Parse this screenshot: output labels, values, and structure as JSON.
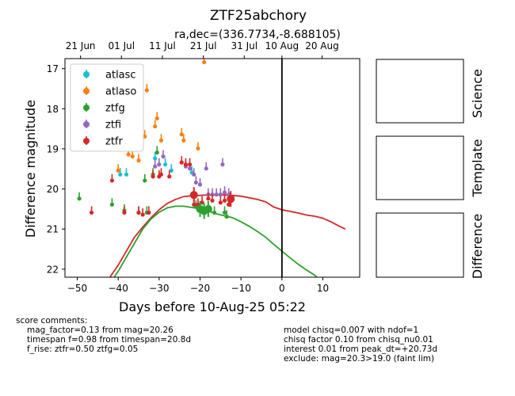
{
  "chart_data": {
    "type": "scatter",
    "title": "ZTF25abchory",
    "subtitle": "ra,dec=(336.7734,-8.688105)",
    "xlabel": "Days before 10-Aug-25 05:22",
    "ylabel": "Difference magnitude",
    "xlim": [
      -53,
      19
    ],
    "ylim": [
      22.2,
      16.75
    ],
    "y_inverted": true,
    "grid": false,
    "legend_position": "upper-left",
    "x_ticks": [
      -50,
      -40,
      -30,
      -20,
      -10,
      0,
      10
    ],
    "x_tick_labels": [
      "−50",
      "−40",
      "−30",
      "−20",
      "−10",
      "0",
      "10"
    ],
    "y_ticks": [
      17,
      18,
      19,
      20,
      21,
      22
    ],
    "top_axis_ticks": [
      {
        "x": -49.2,
        "label": "21 Jun"
      },
      {
        "x": -39.2,
        "label": "01 Jul"
      },
      {
        "x": -29.2,
        "label": "11 Jul"
      },
      {
        "x": -19.2,
        "label": "21 Jul"
      },
      {
        "x": -9.2,
        "label": "31 Jul"
      },
      {
        "x": 0.0,
        "label": "10 Aug"
      },
      {
        "x": 9.8,
        "label": "20 Aug"
      }
    ],
    "vertical_line_x": 0,
    "series": [
      {
        "name": "atlasc",
        "color": "#17becf",
        "marker": "errorbar",
        "points": [
          [
            -39.5,
            19.6
          ],
          [
            -38.0,
            19.6
          ],
          [
            -31.0,
            19.2
          ],
          [
            -28.5,
            19.35
          ],
          [
            -27.0,
            19.5
          ],
          [
            -22.0,
            19.55
          ]
        ]
      },
      {
        "name": "atlaso",
        "color": "#ff7f0e",
        "marker": "errorbar",
        "points": [
          [
            -40.0,
            19.5
          ],
          [
            -37.5,
            19.1
          ],
          [
            -36.5,
            19.15
          ],
          [
            -33.5,
            18.65
          ],
          [
            -33.0,
            17.5
          ],
          [
            -31.0,
            18.4
          ],
          [
            -30.5,
            18.2
          ],
          [
            -29.5,
            18.75
          ],
          [
            -24.5,
            18.6
          ],
          [
            -24.0,
            18.75
          ],
          [
            -20.5,
            18.95
          ],
          [
            -19.0,
            16.8
          ],
          [
            -35.0,
            19.25
          ]
        ]
      },
      {
        "name": "ztfg",
        "color": "#2ca02c",
        "marker": "errorbar",
        "points": [
          [
            -49.5,
            20.2
          ],
          [
            -41.5,
            20.35
          ],
          [
            -38.5,
            20.5
          ],
          [
            -35.0,
            20.55
          ],
          [
            -33.5,
            19.75
          ],
          [
            -33.0,
            20.55
          ],
          [
            -31.5,
            19.6
          ],
          [
            -30.5,
            19.05
          ],
          [
            -21.0,
            20.4
          ],
          [
            -20.0,
            20.5
          ],
          [
            -19.0,
            20.5
          ],
          [
            -18.0,
            20.5
          ],
          [
            -16.5,
            20.55
          ],
          [
            -14.0,
            20.55
          ],
          [
            -13.5,
            20.65
          ],
          [
            -13.0,
            20.35
          ]
        ]
      },
      {
        "name": "ztfi",
        "color": "#9467bd",
        "marker": "errorbar",
        "points": [
          [
            -31.0,
            19.4
          ],
          [
            -30.0,
            19.35
          ],
          [
            -29.0,
            19.15
          ],
          [
            -23.5,
            19.4
          ],
          [
            -22.5,
            19.45
          ],
          [
            -21.5,
            19.6
          ],
          [
            -21.0,
            19.8
          ],
          [
            -20.0,
            19.85
          ],
          [
            -18.5,
            19.45
          ],
          [
            -18.0,
            20.1
          ],
          [
            -17.0,
            20.1
          ],
          [
            -16.0,
            20.1
          ],
          [
            -15.0,
            20.1
          ],
          [
            -14.5,
            19.35
          ],
          [
            -14.0,
            20.05
          ],
          [
            -13.0,
            20.1
          ]
        ]
      },
      {
        "name": "ztfr",
        "color": "#d62728",
        "marker": "errorbar",
        "points": [
          [
            -46.5,
            20.55
          ],
          [
            -41.5,
            19.75
          ],
          [
            -38.5,
            20.55
          ],
          [
            -35.0,
            20.55
          ],
          [
            -34.0,
            20.6
          ],
          [
            -32.5,
            20.55
          ],
          [
            -31.5,
            19.65
          ],
          [
            -30.0,
            19.65
          ],
          [
            -29.5,
            19.6
          ],
          [
            -27.5,
            19.65
          ],
          [
            -24.5,
            19.3
          ],
          [
            -23.5,
            19.35
          ],
          [
            -22.5,
            19.35
          ],
          [
            -21.5,
            20.35
          ],
          [
            -20.5,
            20.35
          ],
          [
            -19.5,
            20.3
          ],
          [
            -18.0,
            20.2
          ],
          [
            -17.0,
            20.25
          ],
          [
            -15.0,
            20.3
          ],
          [
            -14.0,
            20.25
          ],
          [
            -13.0,
            20.35
          ]
        ]
      },
      {
        "name": "",
        "color": "#d62728",
        "marker": "big",
        "points": [
          [
            -21.5,
            20.15
          ],
          [
            -12.5,
            20.25
          ]
        ]
      },
      {
        "name": "",
        "color": "#2ca02c",
        "marker": "big",
        "points": [
          [
            -20.0,
            20.5
          ],
          [
            -19.0,
            20.55
          ],
          [
            -18.0,
            20.5
          ]
        ]
      }
    ],
    "model_curves": [
      {
        "color": "#d62728",
        "points": [
          [
            -42,
            22.2
          ],
          [
            -40,
            21.9
          ],
          [
            -38,
            21.55
          ],
          [
            -36,
            21.2
          ],
          [
            -34,
            20.95
          ],
          [
            -32,
            20.72
          ],
          [
            -30,
            20.52
          ],
          [
            -28,
            20.36
          ],
          [
            -26,
            20.26
          ],
          [
            -24,
            20.19
          ],
          [
            -22,
            20.17
          ],
          [
            -20,
            20.16
          ],
          [
            -18,
            20.15
          ],
          [
            -14,
            20.15
          ],
          [
            -10,
            20.18
          ],
          [
            -6,
            20.26
          ],
          [
            -4,
            20.32
          ],
          [
            -2,
            20.45
          ],
          [
            0,
            20.52
          ],
          [
            2,
            20.56
          ],
          [
            4,
            20.6
          ],
          [
            6,
            20.65
          ],
          [
            8,
            20.68
          ],
          [
            10,
            20.73
          ],
          [
            12,
            20.82
          ],
          [
            14,
            20.93
          ],
          [
            15.5,
            21.0
          ]
        ]
      },
      {
        "color": "#2ca02c",
        "points": [
          [
            -41,
            22.2
          ],
          [
            -40,
            22.05
          ],
          [
            -38,
            21.7
          ],
          [
            -36,
            21.35
          ],
          [
            -34,
            21.0
          ],
          [
            -32,
            20.75
          ],
          [
            -30,
            20.58
          ],
          [
            -28,
            20.47
          ],
          [
            -26,
            20.43
          ],
          [
            -24,
            20.43
          ],
          [
            -22,
            20.46
          ],
          [
            -20,
            20.5
          ],
          [
            -18,
            20.55
          ],
          [
            -16,
            20.62
          ],
          [
            -14,
            20.67
          ],
          [
            -12,
            20.72
          ],
          [
            -10,
            20.82
          ],
          [
            -8,
            20.93
          ],
          [
            -6,
            21.06
          ],
          [
            -4,
            21.2
          ],
          [
            -2,
            21.38
          ],
          [
            0,
            21.55
          ],
          [
            2,
            21.72
          ],
          [
            4,
            21.88
          ],
          [
            6,
            22.02
          ],
          [
            8,
            22.15
          ],
          [
            8.5,
            22.2
          ]
        ]
      }
    ]
  },
  "panels": [
    {
      "label": "Science"
    },
    {
      "label": "Template"
    },
    {
      "label": "Difference"
    }
  ],
  "comments": {
    "left_header": "score comments:",
    "left": [
      "mag_factor=0.13 from mag=20.26",
      "timespan f=0.98 from timespan=20.8d",
      "f_rise: ztfr=0.50 ztfg=0.05"
    ],
    "right": [
      "model chisq=0.007 with ndof=1",
      "chisq factor 0.10 from chisq_nu0.01",
      "interest 0.01 from peak_dt=+20.73d",
      "exclude: mag=20.3>19.0 (faint lim)"
    ]
  }
}
